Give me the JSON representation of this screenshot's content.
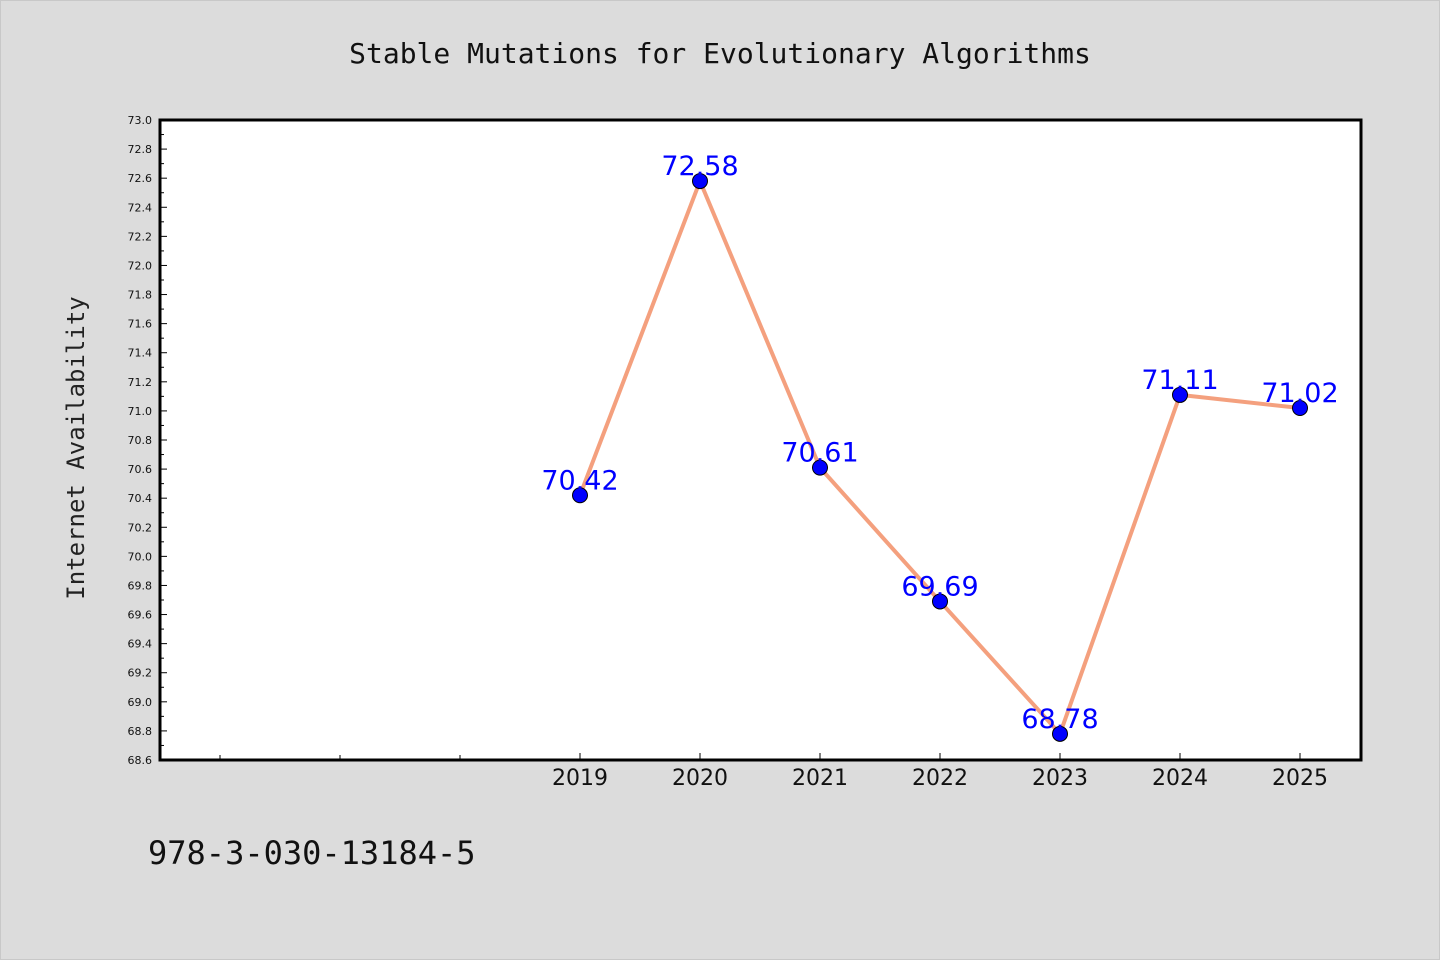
{
  "chart_data": {
    "type": "line",
    "title": "Stable Mutations for Evolutionary Algorithms",
    "xlabel": "",
    "ylabel": "Internet Availability",
    "x": [
      "2019",
      "2020",
      "2021",
      "2022",
      "2023",
      "2024",
      "2025"
    ],
    "series": [
      {
        "values": [
          70.42,
          72.58,
          70.61,
          69.69,
          68.78,
          71.11,
          71.02
        ],
        "labels": [
          "70.42",
          "72.58",
          "70.61",
          "69.69",
          "68.78",
          "71.11",
          "71.02"
        ],
        "line_color": "#f4a07e",
        "marker_color": "#0000ff"
      }
    ],
    "ylim": [
      68.6,
      73.0
    ],
    "yticks": [
      "68.6",
      "68.8",
      "69.0",
      "69.2",
      "69.4",
      "69.6",
      "69.8",
      "70.0",
      "70.2",
      "70.4",
      "70.6",
      "70.8",
      "71.0",
      "71.2",
      "71.4",
      "71.6",
      "71.8",
      "72.0",
      "72.2",
      "72.4",
      "72.6",
      "72.8",
      "73.0"
    ],
    "grid": false,
    "legend": "none"
  },
  "footnote": "978-3-030-13184-5"
}
